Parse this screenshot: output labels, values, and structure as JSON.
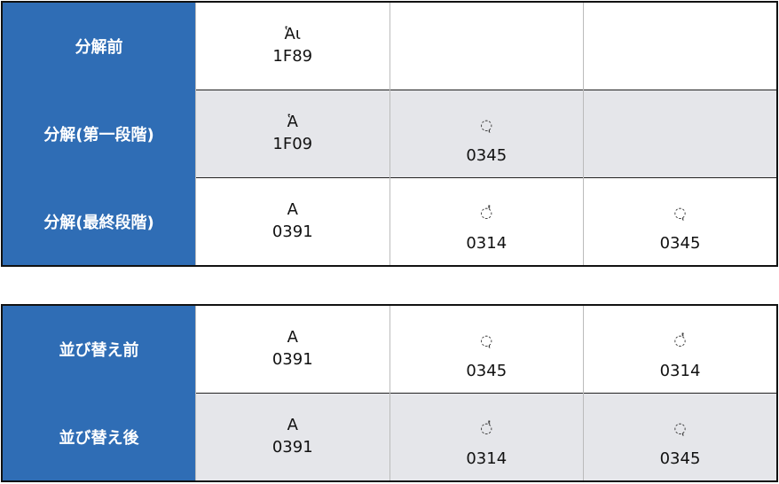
{
  "tables": [
    {
      "rows": [
        {
          "header": "分解前",
          "cells": [
            {
              "char": "Ἁι",
              "code": "1F89"
            }
          ]
        },
        {
          "header": "分解(第一段階)",
          "cells": [
            {
              "char": "Ἁ",
              "code": "1F09"
            },
            {
              "char": "◌ͅ",
              "code": "0345"
            }
          ]
        },
        {
          "header": "分解(最終段階)",
          "cells": [
            {
              "char": "Α",
              "code": "0391"
            },
            {
              "char": "◌̔",
              "code": "0314"
            },
            {
              "char": "◌ͅ",
              "code": "0345"
            }
          ]
        }
      ]
    },
    {
      "rows": [
        {
          "header": "並び替え前",
          "cells": [
            {
              "char": "Α",
              "code": "0391"
            },
            {
              "char": "◌ͅ",
              "code": "0345"
            },
            {
              "char": "◌̔",
              "code": "0314"
            }
          ]
        },
        {
          "header": "並び替え後",
          "cells": [
            {
              "char": "Α",
              "code": "0391"
            },
            {
              "char": "◌̔",
              "code": "0314"
            },
            {
              "char": "◌ͅ",
              "code": "0345"
            }
          ]
        }
      ]
    }
  ]
}
